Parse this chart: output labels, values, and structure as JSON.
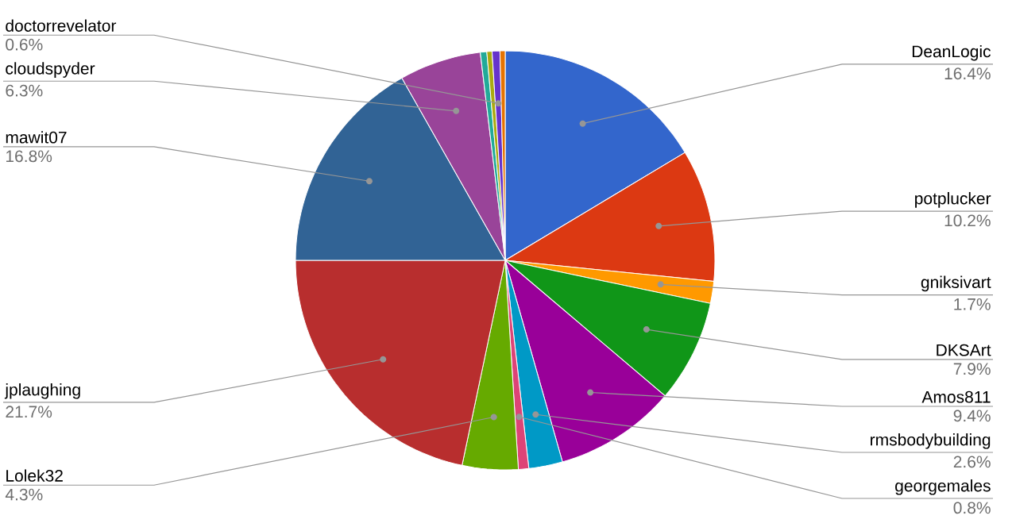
{
  "chart_data": {
    "type": "pie",
    "categories": [
      "DeanLogic",
      "potplucker",
      "gniksivart",
      "DKSArt",
      "Amos811",
      "rmsbodybuilding",
      "georgemales",
      "Lolek32",
      "jplaughing",
      "mawit07",
      "cloudspyder",
      null,
      null,
      "doctorrevelator",
      null
    ],
    "values": [
      16.4,
      10.2,
      1.7,
      7.9,
      9.4,
      2.6,
      0.8,
      4.3,
      21.7,
      16.8,
      6.3,
      0.5,
      0.4,
      0.6,
      0.4
    ],
    "value_labels": [
      "16.4%",
      "10.2%",
      "1.7%",
      "7.9%",
      "9.4%",
      "2.6%",
      "0.8%",
      "4.3%",
      "21.7%",
      "16.8%",
      "6.3%",
      null,
      null,
      "0.6%",
      null
    ],
    "colors": [
      "#3366cc",
      "#dc3912",
      "#ff9900",
      "#109618",
      "#990099",
      "#0099c6",
      "#dd4477",
      "#66aa00",
      "#b82e2e",
      "#316395",
      "#994499",
      "#22aa99",
      "#aaaa11",
      "#6633cc",
      "#e67300"
    ]
  }
}
